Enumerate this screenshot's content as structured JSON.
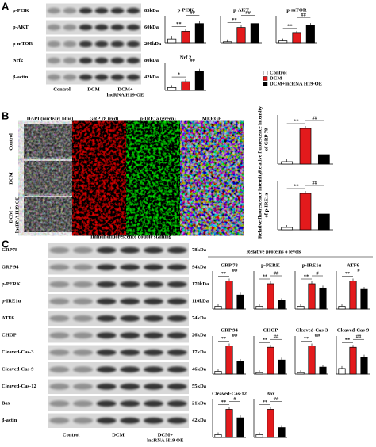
{
  "panel_a": {
    "label": "A",
    "blot": {
      "rows": [
        {
          "protein": "p-PI3K",
          "size": "85kDa"
        },
        {
          "protein": "p-AKT",
          "size": "60kDa"
        },
        {
          "protein": "p-mTOR",
          "size": "290kDa"
        },
        {
          "protein": "Nrf2",
          "size": "80kDa"
        },
        {
          "protein": "β-actin",
          "size": "42kDa"
        }
      ],
      "lanes": [
        [
          "Control"
        ],
        [
          "DCM"
        ],
        [
          "DCM+",
          "lncRNA H19-OE"
        ]
      ]
    },
    "legend": [
      {
        "name": "Control",
        "color": "#ffffff"
      },
      {
        "name": "DCM",
        "color": "#e31a1c"
      },
      {
        "name": "DCM+lncRNA H19-OE",
        "color": "#000000"
      }
    ],
    "charts": [
      {
        "type": "bar",
        "title": "p-PI3K",
        "values": [
          0.2,
          0.6,
          1.0
        ],
        "ylim": [
          0,
          1.4
        ],
        "sig": [
          "**",
          "##"
        ]
      },
      {
        "type": "bar",
        "title": "p-AKT",
        "values": [
          0.05,
          0.8,
          1.0
        ],
        "ylim": [
          0,
          1.4
        ],
        "sig": [
          "**",
          "##"
        ]
      },
      {
        "type": "bar",
        "title": "p-mTOR",
        "values": [
          0.1,
          0.5,
          0.9
        ],
        "ylim": [
          0,
          1.4
        ],
        "sig": [
          "**",
          "##"
        ]
      },
      {
        "type": "bar",
        "title": "Nrf 2",
        "values": [
          0.15,
          0.45,
          1.0
        ],
        "ylim": [
          0,
          1.4
        ],
        "sig": [
          "*",
          "##"
        ]
      }
    ]
  },
  "panel_b": {
    "label": "B",
    "columns": [
      "DAPI (nuclear; blue)",
      "GRP 78 (red)",
      "p-IRE1a (green)",
      "MERGE"
    ],
    "rows": [
      [
        "Control"
      ],
      [
        "DCM"
      ],
      [
        "DCM +",
        "lncRNA H19 OE"
      ]
    ],
    "caption": "Immunofluorescence double staining",
    "charts": [
      {
        "type": "bar",
        "ylabel": [
          "Relative fluorescence intensity",
          "of GRP 78"
        ],
        "values": [
          0.3,
          4.5,
          1.2
        ],
        "ylim": [
          0,
          6.2
        ],
        "sig": [
          "**",
          "##"
        ]
      },
      {
        "type": "bar",
        "ylabel": [
          "Relative fluorescence intensity",
          "of p-IRE1a"
        ],
        "values": [
          0.3,
          4.6,
          2.0
        ],
        "ylim": [
          0,
          6.2
        ],
        "sig": [
          "**",
          "##"
        ]
      }
    ]
  },
  "panel_c": {
    "label": "C",
    "blot": {
      "rows": [
        {
          "protein": "GRP78",
          "size": "78kDa"
        },
        {
          "protein": "GRP 94",
          "size": "94kDa"
        },
        {
          "protein": "p-PERK",
          "size": "170kDa"
        },
        {
          "protein": "p-IRE1α",
          "size": "110kDa"
        },
        {
          "protein": "ATF6",
          "size": "74kDa"
        },
        {
          "protein": "CHOP",
          "size": "26kDa"
        },
        {
          "protein": "Cleaved-Cas-3",
          "size": "17kDa"
        },
        {
          "protein": "Cleaved-Cas-9",
          "size": "46kDa"
        },
        {
          "protein": "Cleaved-Cas-12",
          "size": "55kDa"
        },
        {
          "protein": "Bax",
          "size": "21kDa"
        },
        {
          "protein": "β-actin",
          "size": "42kDa"
        }
      ],
      "lanes": [
        [
          "Control"
        ],
        [
          "DCM"
        ],
        [
          "DCM+",
          "lncRNA H19 OE"
        ]
      ]
    },
    "charts_title": "Relative proteins o levels",
    "charts": [
      {
        "type": "bar",
        "title": "GRP 78",
        "values": [
          0.1,
          1.0,
          0.5
        ],
        "ylim": [
          0,
          1.35
        ],
        "sig": [
          "**",
          "##"
        ]
      },
      {
        "type": "bar",
        "title": "p-PERK",
        "values": [
          0.1,
          0.9,
          0.3
        ],
        "ylim": [
          0,
          1.35
        ],
        "sig": [
          "**",
          "##"
        ]
      },
      {
        "type": "bar",
        "title": "p-IRE1α",
        "values": [
          0.1,
          0.9,
          0.75
        ],
        "ylim": [
          0,
          1.35
        ],
        "sig": [
          "**",
          "#"
        ]
      },
      {
        "type": "bar",
        "title": "ATF6",
        "values": [
          0.1,
          1.0,
          0.7
        ],
        "ylim": [
          0,
          1.35
        ],
        "sig": [
          "**",
          "#"
        ]
      },
      {
        "type": "bar",
        "title": "GRP 94",
        "values": [
          0.1,
          1.0,
          0.45
        ],
        "ylim": [
          0,
          1.35
        ],
        "sig": [
          "**",
          "##"
        ]
      },
      {
        "type": "bar",
        "title": "CHOP",
        "values": [
          0.05,
          0.95,
          0.5
        ],
        "ylim": [
          0,
          1.35
        ],
        "sig": [
          "**",
          "##"
        ]
      },
      {
        "type": "bar",
        "title": "Cleaved-Cas-3",
        "values": [
          0.05,
          1.0,
          0.25
        ],
        "ylim": [
          0,
          1.35
        ],
        "sig": [
          "**",
          "##"
        ]
      },
      {
        "type": "bar",
        "title": "Cleaved-Cas-9",
        "values": [
          0.2,
          0.95,
          0.6
        ],
        "ylim": [
          0,
          1.35
        ],
        "sig": [
          "**",
          "##"
        ]
      },
      {
        "type": "bar",
        "title": "Cleaved-Cas-12",
        "values": [
          0.1,
          1.0,
          0.7
        ],
        "ylim": [
          0,
          1.35
        ],
        "sig": [
          "**",
          "#"
        ]
      },
      {
        "type": "bar",
        "title": "Bax",
        "values": [
          0.1,
          1.0,
          0.35
        ],
        "ylim": [
          0,
          1.35
        ],
        "sig": [
          "**",
          "##"
        ]
      }
    ]
  }
}
